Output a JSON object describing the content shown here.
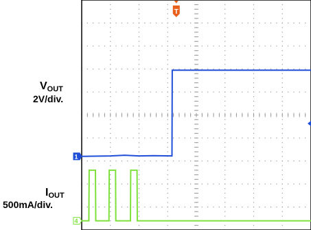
{
  "chart_data": {
    "type": "line",
    "title": "",
    "grid": true,
    "grid_divisions": {
      "horizontal": 8,
      "vertical": 10
    },
    "trigger_marker": {
      "label": "T",
      "x_div": 3.3,
      "color": "#e8601c"
    },
    "x_range_div": [
      0,
      8
    ],
    "channels": [
      {
        "id": "vout",
        "name_main": "V",
        "name_sub": "OUT",
        "scale": "2V/div.",
        "marker": "1",
        "color": "#1f4fd8",
        "ground_div": 3.2,
        "unit_per_div": 2,
        "unit": "V",
        "points_div": [
          [
            0,
            3.2
          ],
          [
            1.0,
            3.22
          ],
          [
            1.5,
            3.25
          ],
          [
            2.0,
            3.22
          ],
          [
            2.5,
            3.23
          ],
          [
            3.15,
            3.22
          ],
          [
            3.16,
            6.95
          ],
          [
            8,
            6.95
          ]
        ]
      },
      {
        "id": "iout",
        "name_main": "I",
        "name_sub": "OUT",
        "scale": "500mA/div.",
        "marker": "4",
        "color": "#7ee03a",
        "ground_div": 0.4,
        "unit_per_div": 0.5,
        "unit": "A",
        "points_div": [
          [
            0,
            0.4
          ],
          [
            0.25,
            0.4
          ],
          [
            0.26,
            2.6
          ],
          [
            0.48,
            2.6
          ],
          [
            0.49,
            0.4
          ],
          [
            0.95,
            0.4
          ],
          [
            0.96,
            2.6
          ],
          [
            1.18,
            2.6
          ],
          [
            1.19,
            0.4
          ],
          [
            1.7,
            0.4
          ],
          [
            1.71,
            2.6
          ],
          [
            1.93,
            2.6
          ],
          [
            1.94,
            0.4
          ],
          [
            8,
            0.4
          ]
        ]
      }
    ],
    "right_marker_div": 4.63
  },
  "colors": {
    "grid_dot": "#9a9a9a",
    "frame": "#000000",
    "background": "#ffffff"
  }
}
